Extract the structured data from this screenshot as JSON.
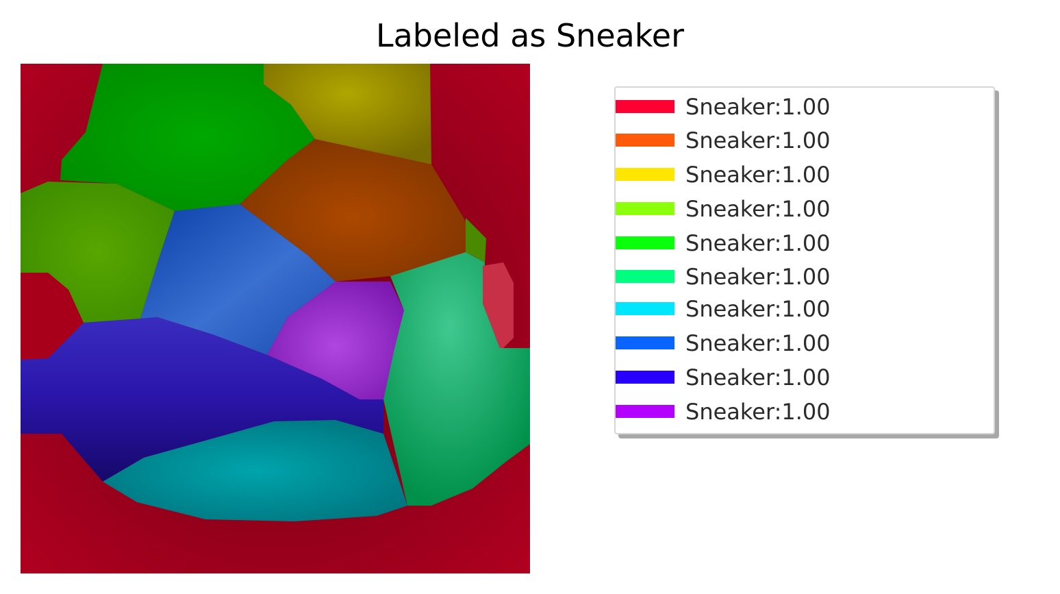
{
  "title": "Labeled as Sneaker",
  "legend": {
    "items": [
      {
        "label": "Sneaker:1.00",
        "color": "#ff0033"
      },
      {
        "label": "Sneaker:1.00",
        "color": "#ff5a0a"
      },
      {
        "label": "Sneaker:1.00",
        "color": "#ffe600"
      },
      {
        "label": "Sneaker:1.00",
        "color": "#8cff0a"
      },
      {
        "label": "Sneaker:1.00",
        "color": "#0aff0a"
      },
      {
        "label": "Sneaker:1.00",
        "color": "#00ff80"
      },
      {
        "label": "Sneaker:1.00",
        "color": "#00e6ff"
      },
      {
        "label": "Sneaker:1.00",
        "color": "#0a64ff"
      },
      {
        "label": "Sneaker:1.00",
        "color": "#2800ff"
      },
      {
        "label": "Sneaker:1.00",
        "color": "#b400ff"
      }
    ]
  },
  "segments": [
    {
      "name": "red",
      "color": "#a80020"
    },
    {
      "name": "olive",
      "color": "#a89a00"
    },
    {
      "name": "green",
      "color": "#00a000"
    },
    {
      "name": "lime",
      "color": "#4c9c00"
    },
    {
      "name": "orange",
      "color": "#a84600"
    },
    {
      "name": "blue",
      "color": "#1a4cb8"
    },
    {
      "name": "purple",
      "color": "#9a2ed0"
    },
    {
      "name": "teal",
      "color": "#08a060"
    },
    {
      "name": "indigo",
      "color": "#2a10a8"
    },
    {
      "name": "cyan",
      "color": "#0098a8"
    }
  ]
}
